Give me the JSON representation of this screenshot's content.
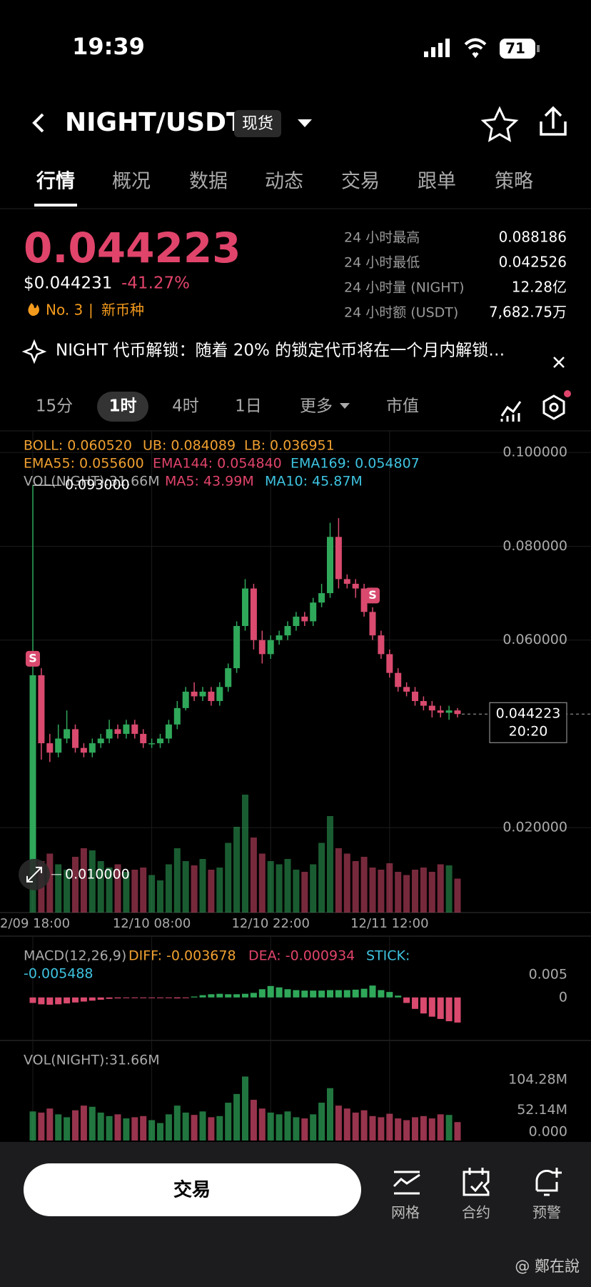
{
  "status_bar": {
    "time": "19:39",
    "battery": "71"
  },
  "header": {
    "pair": "NIGHT/USDT",
    "market": "现货"
  },
  "tabs": [
    "行情",
    "概况",
    "数据",
    "动态",
    "交易",
    "跟单",
    "策略"
  ],
  "ticker": {
    "price": "0.044223",
    "usd_price": "$0.044231",
    "change": "-41.27%",
    "rank": "No. 3",
    "separator": "|",
    "tag": "新币种"
  },
  "stats": [
    {
      "label": "24 小时最高",
      "value": "0.088186"
    },
    {
      "label": "24 小时最低",
      "value": "0.042526"
    },
    {
      "label": "24 小时量 (NIGHT)",
      "value": "12.28亿"
    },
    {
      "label": "24 小时额 (USDT)",
      "value": "7,682.75万"
    }
  ],
  "notice": "NIGHT 代币解锁：随着 20% 的锁定代币将在一个月内解锁…",
  "intervals": [
    "15分",
    "1时",
    "4时",
    "1日",
    "更多",
    "市值"
  ],
  "chart": {
    "type": "candlestick",
    "indicators": {
      "boll": [
        "BOLL: 0.060520",
        "UB: 0.084089",
        "LB: 0.036951"
      ],
      "ema": [
        "EMA55: 0.055600",
        "EMA144: 0.054840",
        "EMA169: 0.054807"
      ],
      "vol": [
        "VOL(NIGHT):31.66M",
        "MA5: 43.99M",
        "MA10: 45.87M"
      ]
    },
    "categories": [
      "2/09 18:00",
      null,
      null,
      null,
      null,
      null,
      null,
      null,
      null,
      null,
      null,
      null,
      null,
      null,
      "12/10 08:00",
      null,
      null,
      null,
      null,
      null,
      null,
      null,
      null,
      null,
      null,
      null,
      null,
      null,
      "12/10 22:00",
      null,
      null,
      null,
      null,
      null,
      null,
      null,
      null,
      null,
      null,
      null,
      null,
      null,
      "12/11 12:00",
      null,
      null,
      null,
      null,
      null,
      null,
      null,
      null
    ],
    "candles": [
      [
        0.01,
        0.093,
        0.01,
        0.0525
      ],
      [
        0.0525,
        0.054,
        0.0345,
        0.038
      ],
      [
        0.038,
        0.04,
        0.034,
        0.036
      ],
      [
        0.036,
        0.042,
        0.035,
        0.039
      ],
      [
        0.039,
        0.045,
        0.038,
        0.041
      ],
      [
        0.041,
        0.042,
        0.036,
        0.037
      ],
      [
        0.037,
        0.038,
        0.035,
        0.036
      ],
      [
        0.036,
        0.039,
        0.035,
        0.038
      ],
      [
        0.038,
        0.04,
        0.037,
        0.039
      ],
      [
        0.039,
        0.043,
        0.038,
        0.041
      ],
      [
        0.041,
        0.042,
        0.039,
        0.04
      ],
      [
        0.04,
        0.043,
        0.039,
        0.042
      ],
      [
        0.042,
        0.043,
        0.039,
        0.04
      ],
      [
        0.04,
        0.041,
        0.037,
        0.038
      ],
      [
        0.038,
        0.039,
        0.037,
        0.038
      ],
      [
        0.038,
        0.04,
        0.037,
        0.039
      ],
      [
        0.039,
        0.043,
        0.038,
        0.042
      ],
      [
        0.042,
        0.047,
        0.041,
        0.0455
      ],
      [
        0.0455,
        0.05,
        0.045,
        0.049
      ],
      [
        0.049,
        0.051,
        0.047,
        0.048
      ],
      [
        0.048,
        0.05,
        0.047,
        0.049
      ],
      [
        0.049,
        0.05,
        0.046,
        0.047
      ],
      [
        0.047,
        0.051,
        0.046,
        0.05
      ],
      [
        0.05,
        0.055,
        0.049,
        0.054
      ],
      [
        0.054,
        0.064,
        0.053,
        0.063
      ],
      [
        0.063,
        0.073,
        0.062,
        0.071
      ],
      [
        0.071,
        0.072,
        0.058,
        0.06
      ],
      [
        0.06,
        0.062,
        0.055,
        0.057
      ],
      [
        0.057,
        0.061,
        0.056,
        0.06
      ],
      [
        0.06,
        0.062,
        0.059,
        0.061
      ],
      [
        0.061,
        0.064,
        0.06,
        0.063
      ],
      [
        0.063,
        0.066,
        0.062,
        0.065
      ],
      [
        0.065,
        0.066,
        0.063,
        0.064
      ],
      [
        0.064,
        0.069,
        0.063,
        0.068
      ],
      [
        0.068,
        0.072,
        0.067,
        0.07
      ],
      [
        0.07,
        0.085,
        0.069,
        0.082
      ],
      [
        0.082,
        0.086,
        0.071,
        0.073
      ],
      [
        0.073,
        0.074,
        0.071,
        0.072
      ],
      [
        0.072,
        0.073,
        0.069,
        0.071
      ],
      [
        0.071,
        0.072,
        0.065,
        0.066
      ],
      [
        0.066,
        0.067,
        0.06,
        0.061
      ],
      [
        0.061,
        0.062,
        0.056,
        0.057
      ],
      [
        0.057,
        0.058,
        0.052,
        0.053
      ],
      [
        0.053,
        0.054,
        0.049,
        0.05
      ],
      [
        0.05,
        0.051,
        0.048,
        0.049
      ],
      [
        0.049,
        0.05,
        0.046,
        0.047
      ],
      [
        0.047,
        0.048,
        0.045,
        0.046
      ],
      [
        0.046,
        0.047,
        0.0435,
        0.045
      ],
      [
        0.045,
        0.046,
        0.0435,
        0.0445
      ],
      [
        0.0445,
        0.046,
        0.043,
        0.045
      ],
      [
        0.045,
        0.0455,
        0.0435,
        0.044223
      ]
    ],
    "ylim": [
      0.0019,
      0.1046
    ],
    "yticks": [
      {
        "value": 0.1,
        "label": "0.100000"
      },
      {
        "value": 0.08,
        "label": "0.080000"
      },
      {
        "value": 0.06,
        "label": "0.060000"
      },
      {
        "value": 0.02,
        "label": "0.020000"
      }
    ],
    "high_label": "0.093000",
    "low_label": "0.010000",
    "signal": "S",
    "last_price": "0.044223",
    "countdown": "20:20",
    "volumes": [
      50,
      48,
      55,
      45,
      40,
      52,
      60,
      58,
      48,
      42,
      45,
      38,
      40,
      42,
      35,
      30,
      45,
      60,
      48,
      44,
      50,
      40,
      42,
      65,
      80,
      110,
      70,
      55,
      48,
      45,
      50,
      40,
      38,
      45,
      65,
      90,
      60,
      55,
      48,
      52,
      42,
      40,
      46,
      38,
      35,
      40,
      42,
      38,
      45,
      44,
      31.66
    ],
    "macd": {
      "title": "MACD(12,26,9)",
      "diff": "DIFF: -0.003678",
      "dea": "DEA: -0.000934",
      "stick_label": "STICK:",
      "stick": "-0.005488",
      "ylim": [
        -0.0094,
        0.0134
      ],
      "yticks": [
        0.005,
        0
      ],
      "values": [
        -0.0012,
        -0.0015,
        -0.0016,
        -0.0015,
        -0.0013,
        -0.0011,
        -0.0009,
        -0.0007,
        -0.0005,
        -0.0003,
        -0.0002,
        -0.0001,
        -0.0001,
        -0.0001,
        -0.0001,
        -0.0001,
        -0.0001,
        -0.0002,
        -0.0001,
        0.0002,
        0.0005,
        0.0007,
        0.0008,
        0.0007,
        0.0007,
        0.0008,
        0.001,
        0.0018,
        0.0025,
        0.0022,
        0.0018,
        0.0016,
        0.0015,
        0.0015,
        0.0015,
        0.0016,
        0.0016,
        0.0016,
        0.0017,
        0.0019,
        0.0026,
        0.0016,
        0.0012,
        0.0004,
        -0.0012,
        -0.0025,
        -0.0035,
        -0.0042,
        -0.0047,
        -0.0052,
        -0.005488
      ]
    },
    "volume_panel": {
      "title": "VOL(NIGHT):31.66M",
      "ylim": [
        0,
        172
      ],
      "yticks": [
        {
          "value": 104.28,
          "label": "104.28M"
        },
        {
          "value": 52.14,
          "label": "52.14M"
        },
        {
          "value": 0,
          "label": "0.000"
        }
      ]
    }
  },
  "actions": {
    "trade": "交易",
    "items": [
      "网格",
      "合约",
      "预警"
    ]
  },
  "watermark": "@ 鄭在說"
}
